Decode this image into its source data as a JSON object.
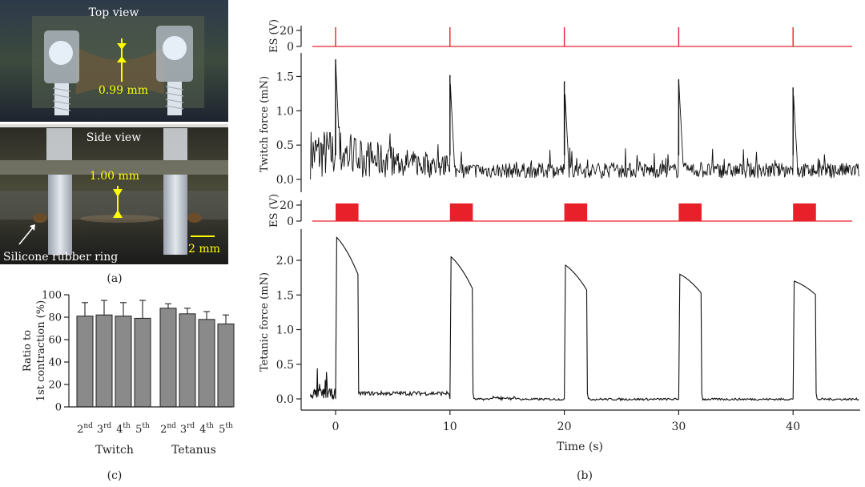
{
  "panel_a": {
    "label": "(a)",
    "top_photo": {
      "title": "Top view",
      "measure": "0.99 mm"
    },
    "side_photo": {
      "title": "Side view",
      "measure": "1.00 mm",
      "scale_bar": "2 mm",
      "ring_label": "Silicone rubber ring"
    }
  },
  "panel_b": {
    "label": "(b)",
    "xlabel": "Time (s)",
    "x_ticks": [
      "0",
      "10",
      "20",
      "30",
      "40"
    ],
    "es_twitch": {
      "ylabel": "ES (V)",
      "y_ticks": [
        "20",
        "0"
      ],
      "pulse_times": [
        0,
        10,
        20,
        30,
        40
      ]
    },
    "twitch": {
      "ylabel": "Twitch force (mN)",
      "y_ticks": [
        "1.5",
        "1.0",
        "0.5",
        "0.0"
      ]
    },
    "es_tetanus": {
      "ylabel": "ES (V)",
      "y_ticks": [
        "20",
        "0"
      ],
      "train_starts": [
        0,
        10,
        20,
        30,
        40
      ],
      "train_duration": 2
    },
    "tetanus": {
      "ylabel": "Tetanic force (mN)",
      "y_ticks": [
        "2.0",
        "1.5",
        "1.0",
        "0.5",
        "0.0"
      ]
    }
  },
  "panel_c": {
    "label": "(c)",
    "ylabel_line1": "Ratio to",
    "ylabel_line2": "1st contraction (%)",
    "y_ticks": [
      "100",
      "80",
      "60",
      "40",
      "20",
      "0"
    ],
    "group_labels": [
      "Twitch",
      "Tetanus"
    ],
    "ordinals": [
      {
        "n": "2",
        "sup": "nd"
      },
      {
        "n": "3",
        "sup": "rd"
      },
      {
        "n": "4",
        "sup": "th"
      },
      {
        "n": "5",
        "sup": "th"
      }
    ]
  },
  "colors": {
    "stimulus": "#e8202a",
    "trace": "#111111",
    "bar_fill": "#8a8a8a"
  },
  "chart_data": [
    {
      "type": "line",
      "name": "ES (twitch)",
      "xlabel": "Time (s)",
      "ylabel": "ES (V)",
      "xlim": [
        -2.5,
        46
      ],
      "ylim": [
        0,
        20
      ],
      "x": [
        0,
        10,
        20,
        30,
        40
      ],
      "series": [
        {
          "values": [
            20,
            20,
            20,
            20,
            20
          ]
        }
      ]
    },
    {
      "type": "line",
      "name": "Twitch force",
      "xlabel": "Time (s)",
      "ylabel": "Twitch force (mN)",
      "xlim": [
        -2.5,
        46
      ],
      "ylim": [
        0,
        1.7
      ],
      "x": [
        0,
        10,
        20,
        30,
        40
      ],
      "series": [
        {
          "values": [
            1.75,
            1.52,
            1.43,
            1.46,
            1.34
          ]
        }
      ]
    },
    {
      "type": "line",
      "name": "ES (tetanus)",
      "xlabel": "Time (s)",
      "ylabel": "ES (V)",
      "xlim": [
        -2.5,
        46
      ],
      "ylim": [
        0,
        20
      ],
      "x": [
        0,
        10,
        20,
        30,
        40
      ],
      "series": [
        {
          "values": [
            20,
            20,
            20,
            20,
            20
          ]
        }
      ]
    },
    {
      "type": "line",
      "name": "Tetanic force",
      "xlabel": "Time (s)",
      "ylabel": "Tetanic force (mN)",
      "xlim": [
        -2.5,
        46
      ],
      "ylim": [
        -0.1,
        2.4
      ],
      "x": [
        0,
        10,
        20,
        30,
        40
      ],
      "series": [
        {
          "values": [
            2.33,
            2.05,
            1.93,
            1.8,
            1.7
          ]
        },
        {
          "values": [
            1.78,
            1.58,
            1.56,
            1.52,
            1.5
          ]
        }
      ]
    },
    {
      "type": "bar",
      "ylabel": "Ratio to 1st contraction (%)",
      "ylim": [
        0,
        100
      ],
      "categories": [
        "2nd",
        "3rd",
        "4th",
        "5th",
        "2nd",
        "3rd",
        "4th",
        "5th"
      ],
      "groups": [
        "Twitch",
        "Twitch",
        "Twitch",
        "Twitch",
        "Tetanus",
        "Tetanus",
        "Tetanus",
        "Tetanus"
      ],
      "values": [
        81,
        82,
        81,
        79,
        88,
        83,
        78,
        74
      ],
      "errors": [
        12,
        13,
        12,
        16,
        4,
        5,
        7,
        8
      ]
    }
  ]
}
